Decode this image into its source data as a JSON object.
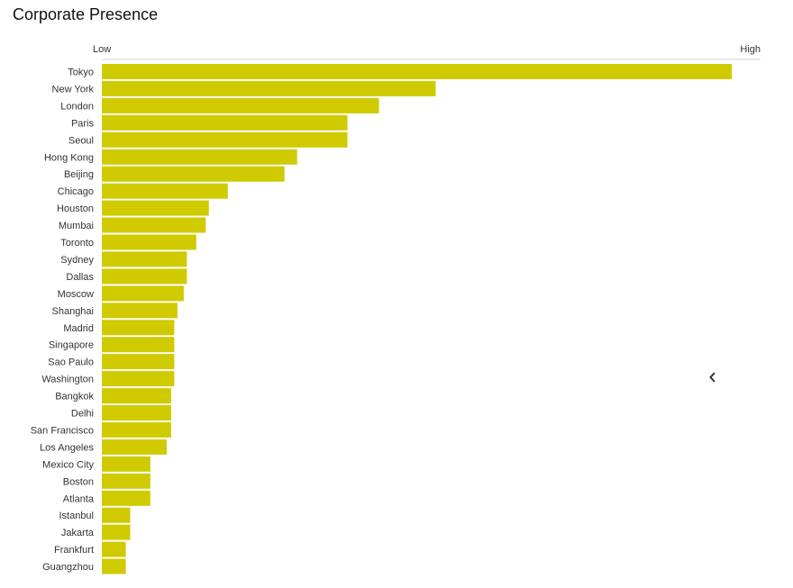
{
  "chart_data": {
    "type": "bar",
    "orientation": "horizontal",
    "title": "Corporate Presence",
    "axis_min_label": "Low",
    "axis_max_label": "High",
    "xlim": [
      0,
      100
    ],
    "grid": false,
    "bar_color": "#d0cb00",
    "categories": [
      "Tokyo",
      "New York",
      "London",
      "Paris",
      "Seoul",
      "Hong Kong",
      "Beijing",
      "Chicago",
      "Houston",
      "Mumbai",
      "Toronto",
      "Sydney",
      "Dallas",
      "Moscow",
      "Shanghai",
      "Madrid",
      "Singapore",
      "Sao Paulo",
      "Washington",
      "Bangkok",
      "Delhi",
      "San Francisco",
      "Los Angeles",
      "Mexico City",
      "Boston",
      "Atlanta",
      "Istanbul",
      "Jakarta",
      "Frankfurt",
      "Guangzhou"
    ],
    "values": [
      100,
      53,
      44,
      39,
      39,
      31,
      29,
      20,
      17,
      16.5,
      15,
      13.5,
      13.5,
      13,
      12,
      11.5,
      11.5,
      11.5,
      11.5,
      11,
      11,
      11,
      10.3,
      7.7,
      7.7,
      7.7,
      4.5,
      4.5,
      3.8,
      3.8
    ]
  },
  "controls": {
    "collapse_icon": "chevron-left-icon"
  }
}
